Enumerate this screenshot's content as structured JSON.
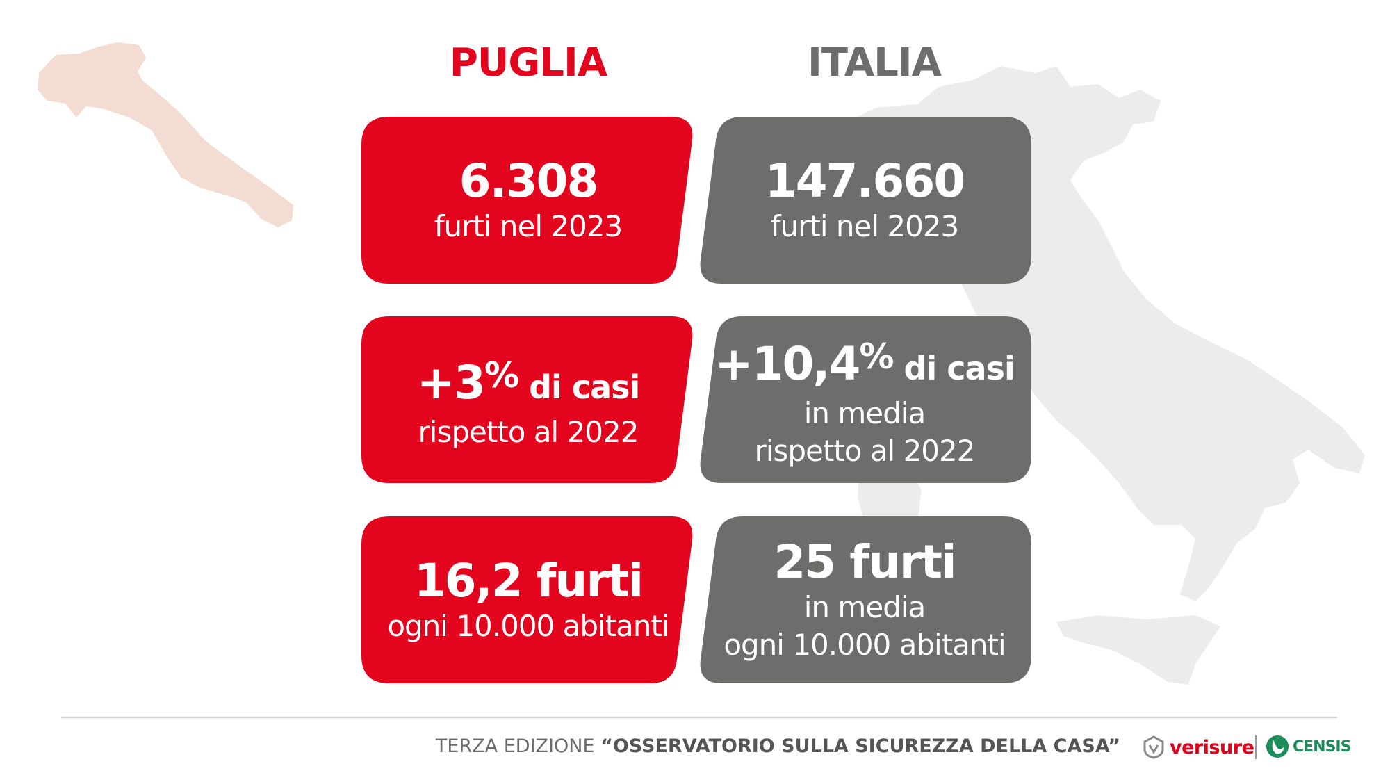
{
  "colors": {
    "puglia_red": "#e3051e",
    "italia_gray": "#6d6d6b",
    "puglia_map": "#f3ddd3",
    "italia_map": "#ececec"
  },
  "columns": {
    "puglia": "PUGLIA",
    "italia": "ITALIA"
  },
  "cards": {
    "puglia_thefts": {
      "value": "6.308",
      "sub": "furti nel 2023"
    },
    "italia_thefts": {
      "value": "147.660",
      "sub": "furti nel 2023"
    },
    "puglia_change": {
      "value": "+3",
      "unit": "%",
      "suffix": " di casi",
      "sub": "rispetto al 2022"
    },
    "italia_change": {
      "value": "+10,4",
      "unit": "%",
      "suffix": " di casi",
      "sub1": "in media",
      "sub2": "rispetto al 2022"
    },
    "puglia_rate": {
      "value": "16,2 furti",
      "sub": "ogni 10.000 abitanti"
    },
    "italia_rate": {
      "value": "25 furti",
      "sub1": "in media",
      "sub2": "ogni 10.000 abitanti"
    }
  },
  "footer": {
    "prefix": "TERZA EDIZIONE ",
    "title": "“OSSERVATORIO SULLA SICUREZZA DELLA CASA”"
  },
  "logos": {
    "verisure": "verisure",
    "censis": "CENSIS"
  },
  "icons": {
    "puglia_map": "puglia-region-map",
    "italia_map": "italy-map",
    "verisure": "verisure-shield-logo",
    "censis": "censis-leaf-logo"
  }
}
